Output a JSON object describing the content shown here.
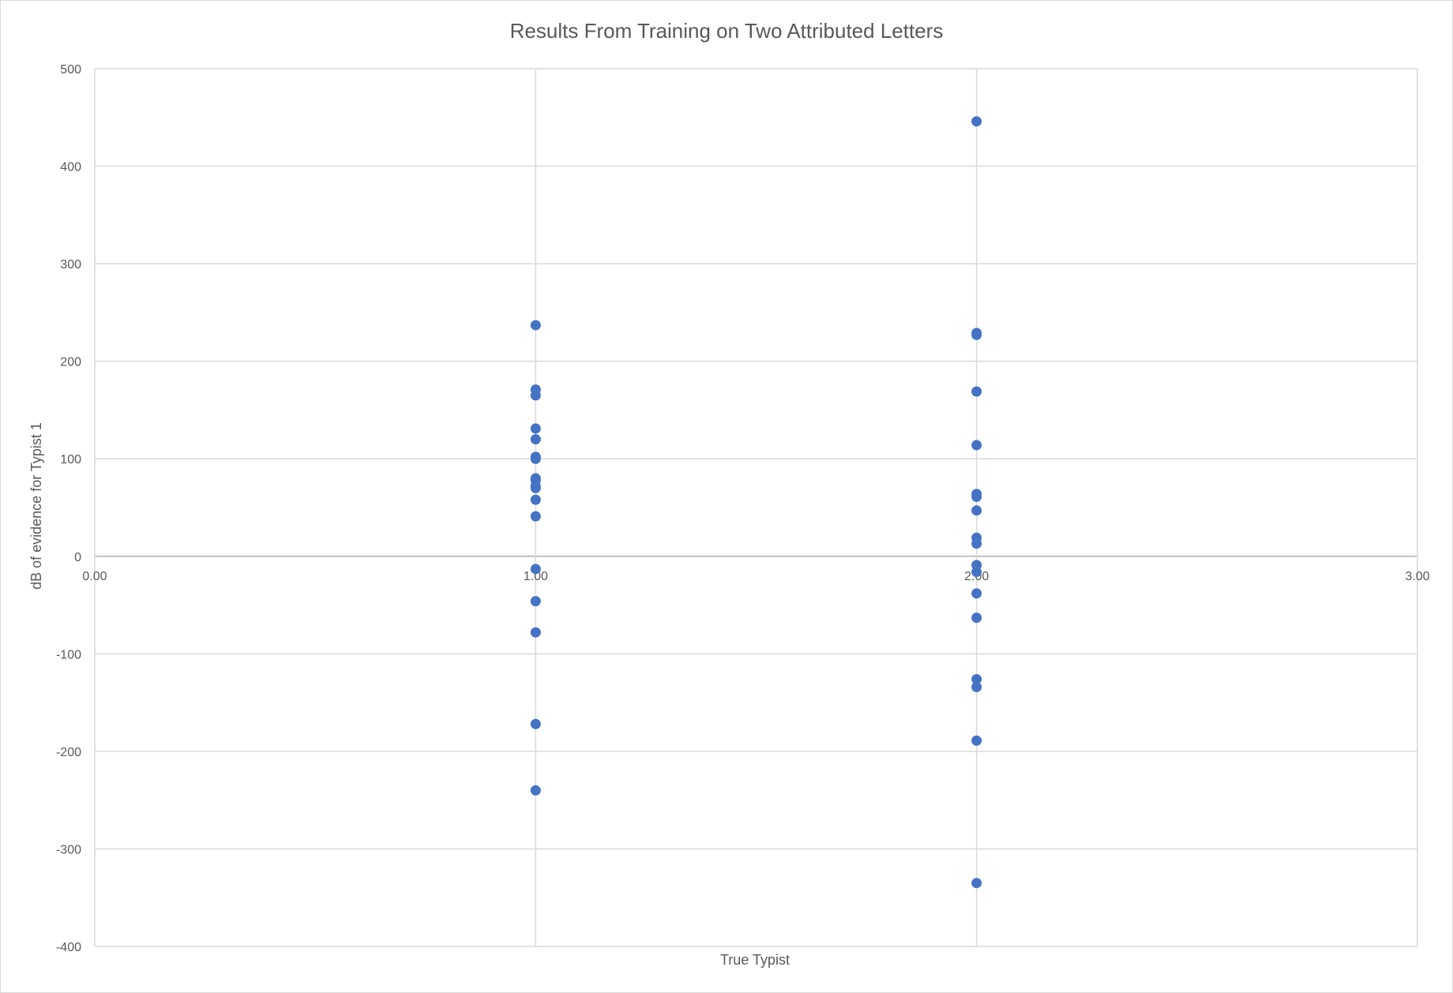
{
  "chart_data": {
    "type": "scatter",
    "title": "Results From Training on Two Attributed Letters",
    "xlabel": "True Typist",
    "ylabel": "dB of evidence for Typist 1",
    "xlim": [
      0,
      3
    ],
    "ylim": [
      -400,
      500
    ],
    "x_ticks": [
      0,
      1,
      2,
      3
    ],
    "x_tick_labels": [
      "0.00",
      "1.00",
      "2.00",
      "3.00"
    ],
    "y_ticks": [
      500,
      400,
      300,
      200,
      100,
      0,
      -100,
      -200,
      -300,
      -400
    ],
    "y_tick_labels": [
      "500",
      "400",
      "300",
      "200",
      "100",
      "0",
      "-100",
      "-200",
      "-300",
      "-400"
    ],
    "grid": true,
    "series": [
      {
        "color": "#4472c4",
        "points": [
          {
            "x": 1,
            "y": 237
          },
          {
            "x": 1,
            "y": 171
          },
          {
            "x": 1,
            "y": 165
          },
          {
            "x": 1,
            "y": 131
          },
          {
            "x": 1,
            "y": 120
          },
          {
            "x": 1,
            "y": 102
          },
          {
            "x": 1,
            "y": 100
          },
          {
            "x": 1,
            "y": 80
          },
          {
            "x": 1,
            "y": 78
          },
          {
            "x": 1,
            "y": 72
          },
          {
            "x": 1,
            "y": 70
          },
          {
            "x": 1,
            "y": 58
          },
          {
            "x": 1,
            "y": 41
          },
          {
            "x": 1,
            "y": -13
          },
          {
            "x": 1,
            "y": -46
          },
          {
            "x": 1,
            "y": -78
          },
          {
            "x": 1,
            "y": -172
          },
          {
            "x": 1,
            "y": -240
          },
          {
            "x": 2,
            "y": 446
          },
          {
            "x": 2,
            "y": 229
          },
          {
            "x": 2,
            "y": 227
          },
          {
            "x": 2,
            "y": 169
          },
          {
            "x": 2,
            "y": 114
          },
          {
            "x": 2,
            "y": 64
          },
          {
            "x": 2,
            "y": 61
          },
          {
            "x": 2,
            "y": 47
          },
          {
            "x": 2,
            "y": 19
          },
          {
            "x": 2,
            "y": 13
          },
          {
            "x": 2,
            "y": -9
          },
          {
            "x": 2,
            "y": -16
          },
          {
            "x": 2,
            "y": -38
          },
          {
            "x": 2,
            "y": -63
          },
          {
            "x": 2,
            "y": -126
          },
          {
            "x": 2,
            "y": -134
          },
          {
            "x": 2,
            "y": -189
          },
          {
            "x": 2,
            "y": -335
          }
        ]
      }
    ]
  }
}
